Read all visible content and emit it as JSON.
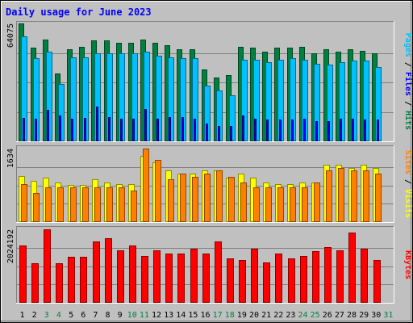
{
  "chart_data": {
    "type": "bar",
    "title": "Daily usage for June 2023",
    "categories": [
      "1",
      "2",
      "3",
      "4",
      "5",
      "6",
      "7",
      "8",
      "9",
      "10",
      "11",
      "12",
      "13",
      "14",
      "15",
      "16",
      "17",
      "18",
      "19",
      "20",
      "21",
      "22",
      "23",
      "24",
      "25",
      "26",
      "27",
      "28",
      "29",
      "30",
      "31"
    ],
    "weekend_days": [
      "3",
      "4",
      "10",
      "11",
      "17",
      "18",
      "24",
      "25",
      "31"
    ],
    "colors": {
      "hits": "#008040",
      "files": "#00c0ff",
      "pages": "#0000ff",
      "visits": "#ffff00",
      "sites": "#ff8000",
      "kbytes": "#ff0000",
      "weekday_label": "#000000",
      "weekend_label": "#008040",
      "title": "#0000ff",
      "background": "#c0c0c0"
    },
    "panels": [
      {
        "name": "hits-files-pages",
        "ymax_label": "64075",
        "ymax": 64075,
        "side_labels": [
          {
            "text": "Pages",
            "color": "#00c0ff"
          },
          {
            "text": " / ",
            "color": "#000000"
          },
          {
            "text": "Files",
            "color": "#0000ff"
          },
          {
            "text": " / ",
            "color": "#000000"
          },
          {
            "text": "Hits",
            "color": "#008040"
          }
        ],
        "series": [
          {
            "name": "Hits",
            "color": "#008040",
            "values": [
              64075,
              51000,
              55200,
              36800,
              50000,
              51400,
              54900,
              54900,
              53500,
              53500,
              55200,
              53500,
              52100,
              50000,
              50000,
              38900,
              34700,
              36100,
              51400,
              50700,
              48600,
              50700,
              50700,
              51400,
              47900,
              50000,
              48600,
              50000,
              49300,
              47900,
              null
            ]
          },
          {
            "name": "Files",
            "color": "#00c0ff",
            "values": [
              57100,
              45100,
              48600,
              31200,
              45800,
              45800,
              47900,
              47900,
              47900,
              47900,
              48600,
              46500,
              45800,
              45100,
              45100,
              30500,
              27800,
              25000,
              44400,
              44400,
              43000,
              44400,
              45100,
              44400,
              42300,
              41600,
              43000,
              43700,
              43700,
              40200,
              null
            ]
          },
          {
            "name": "Pages",
            "color": "#0000ff",
            "values": [
              12800,
              12200,
              17000,
              13900,
              12500,
              12800,
              18800,
              13200,
              12500,
              12200,
              17400,
              12500,
              13200,
              13200,
              12500,
              9700,
              8300,
              8300,
              13900,
              12500,
              11800,
              11800,
              11800,
              12500,
              11100,
              11100,
              12500,
              12500,
              11800,
              11800,
              null
            ]
          }
        ]
      },
      {
        "name": "visits-sites",
        "ymax_label": "1634",
        "ymax": 1634,
        "side_labels": [
          {
            "text": "Sites",
            "color": "#ff8000"
          },
          {
            "text": " / ",
            "color": "#000000"
          },
          {
            "text": "Visits",
            "color": "#ffff00"
          }
        ],
        "series": [
          {
            "name": "Visits",
            "color": "#ffff00",
            "values": [
              1020,
              920,
              990,
              880,
              820,
              820,
              950,
              880,
              850,
              850,
              1480,
              1320,
              1150,
              1080,
              1070,
              1150,
              1150,
              990,
              1070,
              990,
              880,
              850,
              850,
              880,
              880,
              1270,
              1270,
              1210,
              1270,
              1210,
              null
            ]
          },
          {
            "name": "Sites",
            "color": "#ff8000",
            "values": [
              850,
              640,
              780,
              780,
              780,
              780,
              780,
              780,
              780,
              700,
              1634,
              1380,
              950,
              1080,
              1000,
              1070,
              1150,
              1000,
              880,
              780,
              780,
              780,
              780,
              780,
              880,
              1150,
              1210,
              1150,
              1150,
              1080,
              null
            ]
          }
        ]
      },
      {
        "name": "kbytes",
        "ymax_label": "2024192",
        "ymax": 2024192,
        "side_labels": [
          {
            "text": "KBytes",
            "color": "#ff0000"
          }
        ],
        "series": [
          {
            "name": "KBytes",
            "color": "#ff0000",
            "values": [
              1590000,
              1080000,
              2024192,
              1080000,
              1260000,
              1260000,
              1680000,
              1770000,
              1450000,
              1590000,
              1300000,
              1450000,
              1360000,
              1360000,
              1490000,
              1360000,
              1680000,
              1220000,
              1190000,
              1490000,
              1120000,
              1360000,
              1220000,
              1300000,
              1430000,
              1540000,
              1440000,
              1930000,
              1490000,
              1190000,
              null
            ]
          }
        ]
      }
    ]
  }
}
